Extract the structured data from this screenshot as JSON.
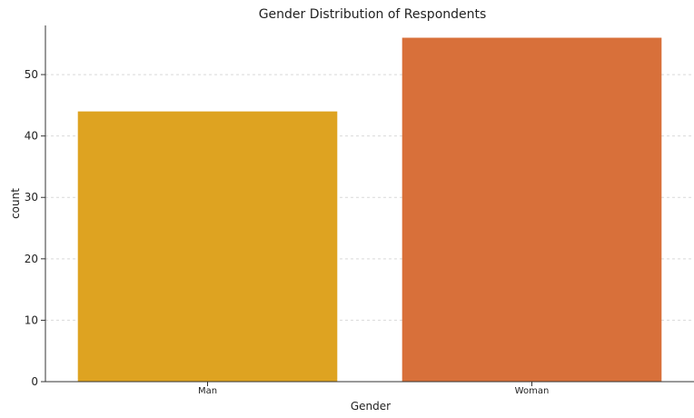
{
  "chart_data": {
    "type": "bar",
    "title": "Gender Distribution of Respondents",
    "xlabel": "Gender",
    "ylabel": "count",
    "categories": [
      "Man",
      "Woman"
    ],
    "values": [
      44,
      56
    ],
    "colors": [
      "#dea321",
      "#d8703a"
    ],
    "ylim": [
      0,
      58
    ],
    "yticks": [
      0,
      10,
      20,
      30,
      40,
      50
    ],
    "grid": true
  }
}
